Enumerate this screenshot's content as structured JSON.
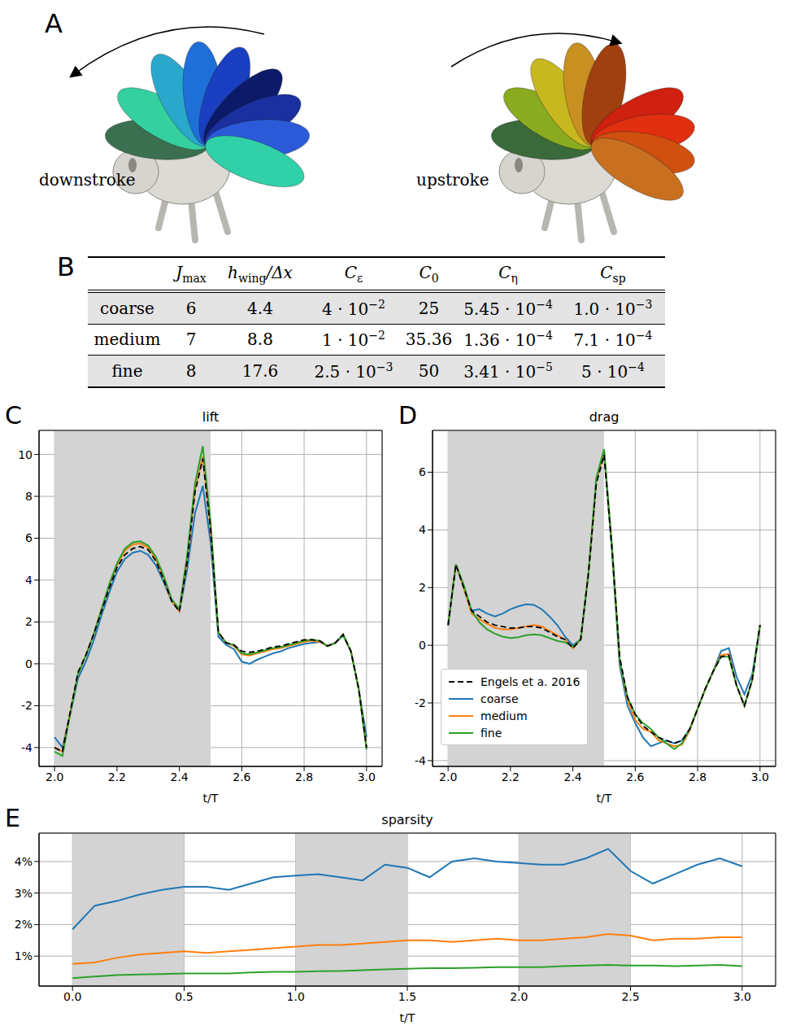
{
  "panel_A": {
    "letter": "A",
    "labels": [
      "downstroke",
      "upstroke"
    ]
  },
  "panel_B": {
    "letter": "B",
    "table": {
      "header": [
        [
          {
            "t": "J"
          },
          {
            "sub": "max"
          }
        ],
        [
          {
            "t": "h"
          },
          {
            "sub": "wing"
          },
          {
            "t": "/Δx"
          }
        ],
        [
          {
            "t": "C"
          },
          {
            "sub": "ε"
          }
        ],
        [
          {
            "t": "C"
          },
          {
            "sub": "0"
          }
        ],
        [
          {
            "t": "C"
          },
          {
            "sub": "η"
          }
        ],
        [
          {
            "t": "C"
          },
          {
            "sub": "sp"
          }
        ]
      ],
      "rows": [
        {
          "label": "coarse",
          "cells": [
            "6",
            "4.4",
            [
              {
                "t": "4 · 10"
              },
              {
                "sup": "−2"
              }
            ],
            "25",
            [
              {
                "t": "5.45 · 10"
              },
              {
                "sup": "−4"
              }
            ],
            [
              {
                "t": "1.0 · 10"
              },
              {
                "sup": "−3"
              }
            ]
          ]
        },
        {
          "label": "medium",
          "cells": [
            "7",
            "8.8",
            [
              {
                "t": "1 · 10"
              },
              {
                "sup": "−2"
              }
            ],
            "35.36",
            [
              {
                "t": "1.36 · 10"
              },
              {
                "sup": "−4"
              }
            ],
            [
              {
                "t": "7.1 · 10"
              },
              {
                "sup": "−4"
              }
            ]
          ]
        },
        {
          "label": "fine",
          "cells": [
            "8",
            "17.6",
            [
              {
                "t": "2.5 · 10"
              },
              {
                "sup": "−3"
              }
            ],
            "50",
            [
              {
                "t": "3.41 · 10"
              },
              {
                "sup": "−5"
              }
            ],
            [
              {
                "t": "5 · 10"
              },
              {
                "sup": "−4"
              }
            ]
          ]
        }
      ]
    }
  },
  "chart_data": [
    {
      "letter": "C",
      "type": "line",
      "title": "lift",
      "x_label": "t/T",
      "grid": true,
      "x": [
        2.0,
        2.025,
        2.05,
        2.075,
        2.1,
        2.125,
        2.15,
        2.175,
        2.2,
        2.225,
        2.25,
        2.275,
        2.3,
        2.325,
        2.35,
        2.375,
        2.4,
        2.425,
        2.45,
        2.475,
        2.5,
        2.525,
        2.55,
        2.575,
        2.6,
        2.625,
        2.65,
        2.675,
        2.7,
        2.725,
        2.75,
        2.775,
        2.8,
        2.825,
        2.85,
        2.875,
        2.9,
        2.925,
        2.95,
        2.975,
        3.0
      ],
      "xlim": [
        1.95,
        3.05
      ],
      "xticks": [
        {
          "value": 2.0,
          "label": "2.0"
        },
        {
          "value": 2.2,
          "label": "2.2"
        },
        {
          "value": 2.4,
          "label": "2.4"
        },
        {
          "value": 2.6,
          "label": "2.6"
        },
        {
          "value": 2.8,
          "label": "2.8"
        },
        {
          "value": 3.0,
          "label": "3.0"
        }
      ],
      "ylim": [
        -4.9,
        11.15
      ],
      "yticks": [
        -4,
        -2,
        0,
        2,
        4,
        6,
        8,
        10
      ],
      "shaded_intervals": [
        [
          2.0,
          2.5
        ]
      ],
      "series": [
        {
          "color": "#000000",
          "line_style": "dashed",
          "values": [
            -4.0,
            -4.2,
            -2.3,
            -0.4,
            0.4,
            1.4,
            2.5,
            3.6,
            4.6,
            5.2,
            5.5,
            5.6,
            5.45,
            4.9,
            4.0,
            3.0,
            2.5,
            4.9,
            8.2,
            9.8,
            6.4,
            1.5,
            1.0,
            0.9,
            0.6,
            0.55,
            0.6,
            0.7,
            0.8,
            0.85,
            0.95,
            1.05,
            1.15,
            1.15,
            1.1,
            0.85,
            1.0,
            1.4,
            0.6,
            -1.2,
            -4.0
          ]
        },
        {
          "color": "#1f77b4",
          "line_style": "solid",
          "values": [
            -3.5,
            -4.0,
            -2.4,
            -0.7,
            0.1,
            1.1,
            2.3,
            3.4,
            4.4,
            5.0,
            5.3,
            5.4,
            5.2,
            4.7,
            3.9,
            3.0,
            2.5,
            4.5,
            7.2,
            8.5,
            5.8,
            1.3,
            0.9,
            0.7,
            0.1,
            0.0,
            0.2,
            0.35,
            0.5,
            0.6,
            0.75,
            0.85,
            0.95,
            1.0,
            1.05,
            0.85,
            1.0,
            1.35,
            0.6,
            -1.2,
            -3.5
          ]
        },
        {
          "color": "#ff7f0e",
          "line_style": "solid",
          "values": [
            -4.0,
            -4.2,
            -2.3,
            -0.5,
            0.4,
            1.4,
            2.6,
            3.7,
            4.7,
            5.4,
            5.7,
            5.75,
            5.55,
            5.0,
            4.1,
            3.0,
            2.5,
            5.0,
            8.3,
            9.9,
            6.5,
            1.5,
            1.0,
            0.85,
            0.45,
            0.4,
            0.5,
            0.6,
            0.7,
            0.75,
            0.85,
            0.95,
            1.05,
            1.1,
            1.05,
            0.85,
            1.0,
            1.4,
            0.6,
            -1.2,
            -4.0
          ]
        },
        {
          "color": "#2ca02c",
          "line_style": "solid",
          "values": [
            -4.2,
            -4.4,
            -2.4,
            -0.5,
            0.4,
            1.4,
            2.6,
            3.8,
            4.8,
            5.5,
            5.8,
            5.85,
            5.65,
            5.1,
            4.2,
            3.1,
            2.6,
            5.2,
            8.6,
            10.4,
            6.8,
            1.5,
            1.0,
            0.9,
            0.5,
            0.45,
            0.55,
            0.65,
            0.75,
            0.8,
            0.9,
            1.0,
            1.1,
            1.15,
            1.1,
            0.85,
            1.0,
            1.4,
            0.6,
            -1.2,
            -4.1
          ]
        }
      ]
    },
    {
      "letter": "D",
      "type": "line",
      "title": "drag",
      "x_label": "t/T",
      "grid": true,
      "legend": "lower left",
      "x": [
        2.0,
        2.025,
        2.05,
        2.075,
        2.1,
        2.125,
        2.15,
        2.175,
        2.2,
        2.225,
        2.25,
        2.275,
        2.3,
        2.325,
        2.35,
        2.375,
        2.4,
        2.425,
        2.45,
        2.475,
        2.5,
        2.525,
        2.55,
        2.575,
        2.6,
        2.625,
        2.65,
        2.675,
        2.7,
        2.725,
        2.75,
        2.775,
        2.8,
        2.825,
        2.85,
        2.875,
        2.9,
        2.925,
        2.95,
        2.975,
        3.0
      ],
      "xlim": [
        1.95,
        3.05
      ],
      "xticks": [
        {
          "value": 2.0,
          "label": "2.0"
        },
        {
          "value": 2.2,
          "label": "2.2"
        },
        {
          "value": 2.4,
          "label": "2.4"
        },
        {
          "value": 2.6,
          "label": "2.6"
        },
        {
          "value": 2.8,
          "label": "2.8"
        },
        {
          "value": 3.0,
          "label": "3.0"
        }
      ],
      "ylim": [
        -4.2,
        7.45
      ],
      "yticks": [
        -4,
        -2,
        0,
        2,
        4,
        6
      ],
      "shaded_intervals": [
        [
          2.0,
          2.5
        ]
      ],
      "series": [
        {
          "name": "Engels et a. 2016",
          "color": "#000000",
          "line_style": "dashed",
          "values": [
            0.7,
            2.8,
            2.0,
            1.2,
            1.0,
            0.8,
            0.7,
            0.65,
            0.6,
            0.6,
            0.65,
            0.65,
            0.6,
            0.45,
            0.3,
            0.2,
            -0.1,
            0.2,
            2.5,
            5.6,
            6.6,
            3.4,
            -0.4,
            -1.8,
            -2.4,
            -2.8,
            -3.0,
            -3.2,
            -3.3,
            -3.4,
            -3.3,
            -2.9,
            -2.2,
            -1.5,
            -0.9,
            -0.4,
            -0.35,
            -1.4,
            -2.1,
            -1.2,
            0.7
          ]
        },
        {
          "name": "coarse",
          "color": "#1f77b4",
          "line_style": "solid",
          "values": [
            0.7,
            2.8,
            2.0,
            1.2,
            1.25,
            1.1,
            1.0,
            1.1,
            1.25,
            1.35,
            1.42,
            1.4,
            1.25,
            1.0,
            0.7,
            0.3,
            0.0,
            0.2,
            2.5,
            5.7,
            6.7,
            3.3,
            -0.7,
            -2.1,
            -2.7,
            -3.2,
            -3.5,
            -3.4,
            -3.3,
            -3.4,
            -3.3,
            -2.9,
            -2.2,
            -1.5,
            -0.9,
            -0.2,
            -0.1,
            -1.1,
            -1.7,
            -1.0,
            0.7
          ]
        },
        {
          "name": "medium",
          "color": "#ff7f0e",
          "line_style": "solid",
          "values": [
            0.7,
            2.8,
            2.0,
            1.1,
            0.9,
            0.75,
            0.6,
            0.55,
            0.55,
            0.6,
            0.65,
            0.7,
            0.65,
            0.5,
            0.35,
            0.2,
            -0.1,
            0.2,
            2.5,
            5.7,
            6.7,
            3.5,
            -0.5,
            -1.9,
            -2.6,
            -2.9,
            -3.0,
            -3.3,
            -3.4,
            -3.5,
            -3.45,
            -2.95,
            -2.2,
            -1.5,
            -0.9,
            -0.35,
            -0.3,
            -1.4,
            -2.1,
            -1.2,
            0.7
          ]
        },
        {
          "name": "fine",
          "color": "#2ca02c",
          "line_style": "solid",
          "values": [
            0.7,
            2.8,
            2.1,
            1.2,
            0.8,
            0.55,
            0.4,
            0.3,
            0.25,
            0.28,
            0.35,
            0.38,
            0.35,
            0.25,
            0.15,
            0.1,
            -0.05,
            0.2,
            2.5,
            5.8,
            6.8,
            3.5,
            -0.5,
            -1.8,
            -2.4,
            -2.7,
            -2.9,
            -3.2,
            -3.4,
            -3.6,
            -3.4,
            -2.9,
            -2.2,
            -1.5,
            -0.9,
            -0.4,
            -0.4,
            -1.4,
            -2.1,
            -1.2,
            0.7
          ]
        }
      ]
    },
    {
      "letter": "E",
      "type": "line",
      "title": "sparsity",
      "x_label": "t/T",
      "grid": true,
      "x": [
        0.0,
        0.1,
        0.2,
        0.3,
        0.4,
        0.5,
        0.6,
        0.7,
        0.8,
        0.9,
        1.0,
        1.1,
        1.2,
        1.3,
        1.4,
        1.5,
        1.6,
        1.7,
        1.8,
        1.9,
        2.0,
        2.1,
        2.2,
        2.3,
        2.4,
        2.5,
        2.6,
        2.7,
        2.8,
        2.9,
        3.0
      ],
      "xlim": [
        -0.15,
        3.15
      ],
      "xticks": [
        {
          "value": 0.0,
          "label": "0.0"
        },
        {
          "value": 0.5,
          "label": "0.5"
        },
        {
          "value": 1.0,
          "label": "1.0"
        },
        {
          "value": 1.5,
          "label": "1.5"
        },
        {
          "value": 2.0,
          "label": "2.0"
        },
        {
          "value": 2.5,
          "label": "2.5"
        },
        {
          "value": 3.0,
          "label": "3.0"
        }
      ],
      "ylim": [
        0.05,
        4.9
      ],
      "yticks": [
        {
          "value": 1,
          "label": "1%"
        },
        {
          "value": 2,
          "label": "2%"
        },
        {
          "value": 3,
          "label": "3%"
        },
        {
          "value": 4,
          "label": "4%"
        }
      ],
      "shaded_intervals": [
        [
          0.0,
          0.5
        ],
        [
          1.0,
          1.5
        ],
        [
          2.0,
          2.5
        ]
      ],
      "series": [
        {
          "color": "#1f77b4",
          "line_style": "solid",
          "values": [
            1.85,
            2.6,
            2.75,
            2.95,
            3.1,
            3.2,
            3.2,
            3.1,
            3.3,
            3.5,
            3.55,
            3.6,
            3.5,
            3.4,
            3.9,
            3.8,
            3.5,
            4.0,
            4.1,
            4.0,
            3.95,
            3.9,
            3.9,
            4.1,
            4.4,
            3.7,
            3.3,
            3.6,
            3.9,
            4.1,
            3.85
          ]
        },
        {
          "color": "#ff7f0e",
          "line_style": "solid",
          "values": [
            0.75,
            0.8,
            0.95,
            1.05,
            1.1,
            1.15,
            1.1,
            1.15,
            1.2,
            1.25,
            1.3,
            1.35,
            1.35,
            1.4,
            1.45,
            1.5,
            1.5,
            1.45,
            1.5,
            1.55,
            1.5,
            1.5,
            1.55,
            1.6,
            1.7,
            1.65,
            1.5,
            1.55,
            1.55,
            1.6,
            1.6
          ]
        },
        {
          "color": "#2ca02c",
          "line_style": "solid",
          "values": [
            0.3,
            0.35,
            0.4,
            0.42,
            0.43,
            0.45,
            0.45,
            0.45,
            0.48,
            0.5,
            0.5,
            0.52,
            0.53,
            0.55,
            0.58,
            0.6,
            0.62,
            0.62,
            0.63,
            0.65,
            0.65,
            0.65,
            0.68,
            0.7,
            0.72,
            0.7,
            0.7,
            0.68,
            0.7,
            0.72,
            0.68
          ]
        }
      ]
    }
  ]
}
